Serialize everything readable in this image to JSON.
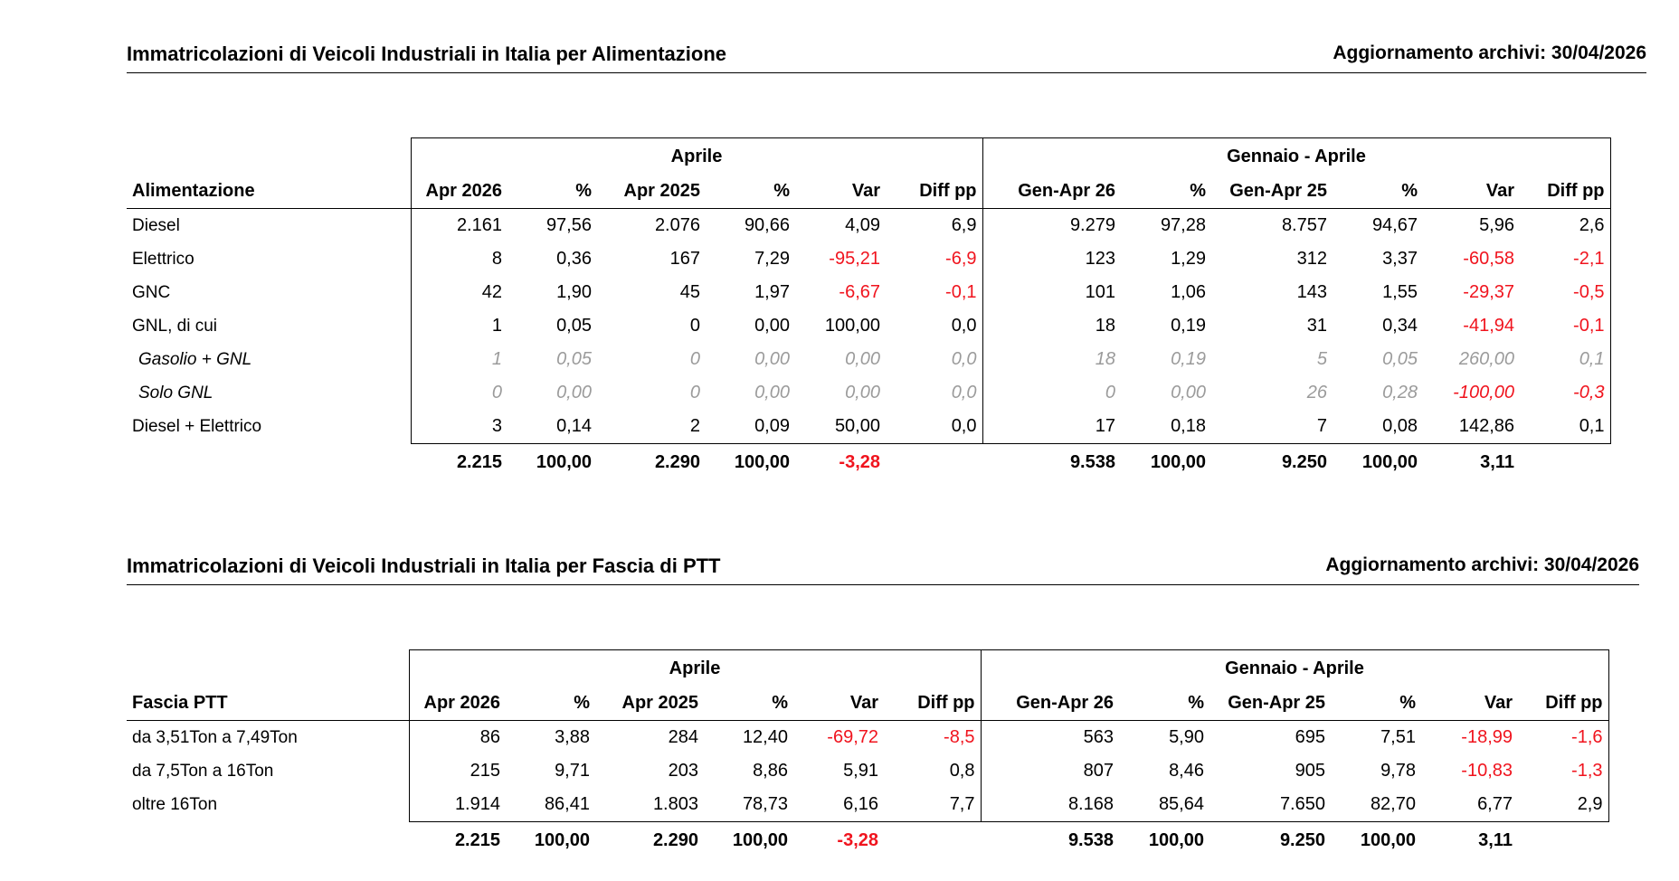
{
  "fuel": {
    "title": "Immatricolazioni di Veicoli Industriali in Italia per Alimentazione",
    "update": "Aggiornamento archivi: 30/04/2026",
    "group_month": "Aprile",
    "group_ytd": "Gennaio - Aprile",
    "columns": [
      "Alimentazione",
      "Apr 2026",
      "%",
      "Apr 2025",
      "%",
      "Var",
      "Diff pp",
      "Gen-Apr 26",
      "%",
      "Gen-Apr 25",
      "%",
      "Var",
      "Diff pp"
    ],
    "rows": [
      [
        "Diesel",
        "2.161",
        "97,56",
        "2.076",
        "90,66",
        "4,09",
        "6,9",
        "9.279",
        "97,28",
        "8.757",
        "94,67",
        "5,96",
        "2,6"
      ],
      [
        "Elettrico",
        "8",
        "0,36",
        "167",
        "7,29",
        "-95,21",
        "-6,9",
        "123",
        "1,29",
        "312",
        "3,37",
        "-60,58",
        "-2,1"
      ],
      [
        "GNC",
        "42",
        "1,90",
        "45",
        "1,97",
        "-6,67",
        "-0,1",
        "101",
        "1,06",
        "143",
        "1,55",
        "-29,37",
        "-0,5"
      ],
      [
        "GNL, di cui",
        "1",
        "0,05",
        "0",
        "0,00",
        "100,00",
        "0,0",
        "18",
        "0,19",
        "31",
        "0,34",
        "-41,94",
        "-0,1"
      ],
      [
        "Gasolio + GNL",
        "1",
        "0,05",
        "0",
        "0,00",
        "0,00",
        "0,0",
        "18",
        "0,19",
        "5",
        "0,05",
        "260,00",
        "0,1"
      ],
      [
        "Solo GNL",
        "0",
        "0,00",
        "0",
        "0,00",
        "0,00",
        "0,0",
        "0",
        "0,00",
        "26",
        "0,28",
        "-100,00",
        "-0,3"
      ],
      [
        "Diesel + Elettrico",
        "3",
        "0,14",
        "2",
        "0,09",
        "50,00",
        "0,0",
        "17",
        "0,18",
        "7",
        "0,08",
        "142,86",
        "0,1"
      ]
    ],
    "total": [
      "2.215",
      "100,00",
      "2.290",
      "100,00",
      "-3,28",
      "9.538",
      "100,00",
      "9.250",
      "100,00",
      "3,11"
    ]
  },
  "ptt": {
    "title": "Immatricolazioni di Veicoli Industriali in Italia per Fascia di PTT",
    "update": "Aggiornamento archivi: 30/04/2026",
    "group_month": "Aprile",
    "group_ytd": "Gennaio - Aprile",
    "columns": [
      "Fascia PTT",
      "Apr 2026",
      "%",
      "Apr 2025",
      "%",
      "Var",
      "Diff pp",
      "Gen-Apr 26",
      "%",
      "Gen-Apr 25",
      "%",
      "Var",
      "Diff pp"
    ],
    "rows": [
      [
        "da 3,51Ton a 7,49Ton",
        "86",
        "3,88",
        "284",
        "12,40",
        "-69,72",
        "-8,5",
        "563",
        "5,90",
        "695",
        "7,51",
        "-18,99",
        "-1,6"
      ],
      [
        "da 7,5Ton a 16Ton",
        "215",
        "9,71",
        "203",
        "8,86",
        "5,91",
        "0,8",
        "807",
        "8,46",
        "905",
        "9,78",
        "-10,83",
        "-1,3"
      ],
      [
        "oltre 16Ton",
        "1.914",
        "86,41",
        "1.803",
        "78,73",
        "6,16",
        "7,7",
        "8.168",
        "85,64",
        "7.650",
        "82,70",
        "6,77",
        "2,9"
      ]
    ],
    "total": [
      "2.215",
      "100,00",
      "2.290",
      "100,00",
      "-3,28",
      "9.538",
      "100,00",
      "9.250",
      "100,00",
      "3,11"
    ]
  }
}
